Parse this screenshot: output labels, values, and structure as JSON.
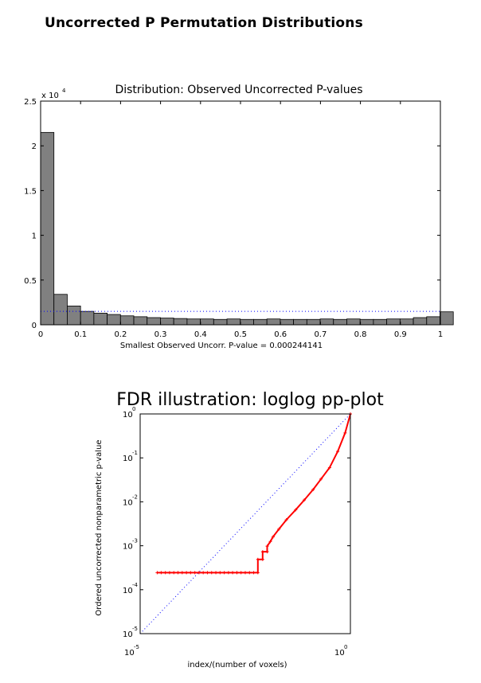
{
  "page_title": "Uncorrected P Permutation Distributions",
  "chart_data": [
    {
      "type": "bar",
      "title": "Distribution: Observed Uncorrected P-values",
      "xlabel": "Smallest Observed Uncorr. P-value = 0.000244141",
      "ylabel": "",
      "y_multiplier": "x 10",
      "y_multiplier_exp": "4",
      "bin_width": 0.0333,
      "xlim": [
        0,
        1
      ],
      "ylim": [
        0,
        2.5
      ],
      "x_ticks": [
        0,
        0.1,
        0.2,
        0.3,
        0.4,
        0.5,
        0.6,
        0.7,
        0.8,
        0.9,
        1
      ],
      "x_tick_labels": [
        "0",
        "0.1",
        "0.2",
        "0.3",
        "0.4",
        "0.5",
        "0.6",
        "0.7",
        "0.8",
        "0.9",
        "1"
      ],
      "y_ticks": [
        0,
        0.5,
        1,
        1.5,
        2,
        2.5
      ],
      "y_tick_labels": [
        "0",
        "0.5",
        "1",
        "1.5",
        "2",
        "2.5"
      ],
      "values": [
        2.15,
        0.34,
        0.21,
        0.15,
        0.13,
        0.115,
        0.1,
        0.09,
        0.08,
        0.075,
        0.07,
        0.065,
        0.065,
        0.06,
        0.065,
        0.06,
        0.06,
        0.065,
        0.06,
        0.06,
        0.06,
        0.065,
        0.06,
        0.065,
        0.06,
        0.06,
        0.065,
        0.065,
        0.08,
        0.09,
        0.145
      ],
      "reference_line_y": 0.15,
      "bar_color": "#808080",
      "reference_line_color": "#0000ff"
    },
    {
      "type": "line",
      "title": "FDR illustration: loglog pp-plot",
      "xlabel": "index/(number of voxels)",
      "ylabel": "Ordered uncorrected nonparametric p-value",
      "x_scale": "log",
      "y_scale": "log",
      "xlim": [
        1e-05,
        1
      ],
      "ylim": [
        1e-05,
        1
      ],
      "x_tick_labels": [
        {
          "base": "10",
          "exp": "-5"
        },
        {
          "base": "10",
          "exp": "0"
        }
      ],
      "y_tick_labels": [
        {
          "base": "10",
          "exp": "0"
        },
        {
          "base": "10",
          "exp": "-1"
        },
        {
          "base": "10",
          "exp": "-2"
        },
        {
          "base": "10",
          "exp": "-3"
        },
        {
          "base": "10",
          "exp": "-4"
        },
        {
          "base": "10",
          "exp": "-5"
        }
      ],
      "reference_line": {
        "x": [
          1e-05,
          1
        ],
        "y": [
          1e-05,
          1
        ],
        "color": "#0000ff",
        "style": "dotted"
      },
      "series_color": "#ff0000",
      "series": [
        {
          "x": [
            2.54e-05,
            3.16e-05,
            3.98e-05,
            5.01e-05,
            6.31e-05,
            7.94e-05,
            0.0001,
            0.000126,
            0.000158,
            0.0002,
            0.000251,
            0.000316,
            0.000398,
            0.000501,
            0.000631,
            0.000794,
            0.001,
            0.00126,
            0.00158,
            0.002,
            0.00251,
            0.00316,
            0.00398,
            0.00501,
            0.0063,
            0.0063,
            0.0082,
            0.0082,
            0.0105,
            0.0105,
            0.0125,
            0.0145,
            0.02,
            0.03,
            0.05,
            0.08,
            0.13,
            0.2,
            0.32,
            0.5,
            0.75,
            1
          ],
          "y": [
            0.000244,
            0.000244,
            0.000244,
            0.000244,
            0.000244,
            0.000244,
            0.000244,
            0.000244,
            0.000244,
            0.000244,
            0.000244,
            0.000244,
            0.000244,
            0.000244,
            0.000244,
            0.000244,
            0.000244,
            0.000244,
            0.000244,
            0.000244,
            0.000244,
            0.000244,
            0.000244,
            0.000244,
            0.000244,
            0.00049,
            0.00049,
            0.00073,
            0.00073,
            0.00098,
            0.00125,
            0.0016,
            0.0024,
            0.0039,
            0.0066,
            0.011,
            0.019,
            0.033,
            0.06,
            0.14,
            0.37,
            1
          ]
        }
      ]
    }
  ]
}
